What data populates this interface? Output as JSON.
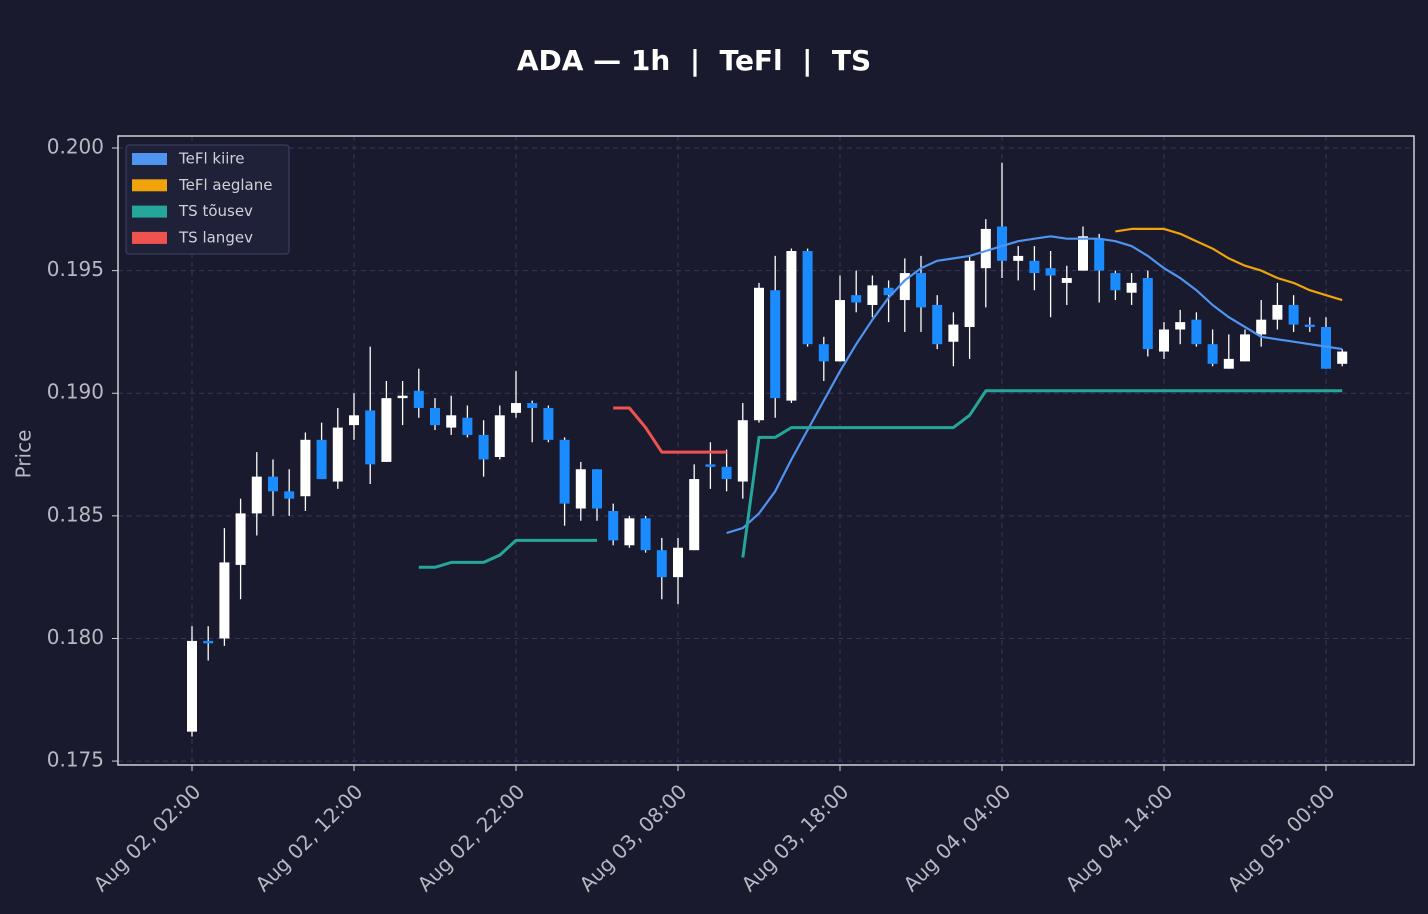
{
  "chart_data": {
    "type": "candlestick",
    "title": "ADA — 1h  |  TeFl  |  TS",
    "ylabel": "Price",
    "categories": [
      "Aug 02, 02:00",
      null,
      null,
      null,
      null,
      null,
      null,
      null,
      null,
      null,
      "Aug 02, 12:00",
      null,
      null,
      null,
      null,
      null,
      null,
      null,
      null,
      null,
      "Aug 02, 22:00",
      null,
      null,
      null,
      null,
      null,
      null,
      null,
      null,
      null,
      "Aug 03, 08:00",
      null,
      null,
      null,
      null,
      null,
      null,
      null,
      null,
      null,
      "Aug 03, 18:00",
      null,
      null,
      null,
      null,
      null,
      null,
      null,
      null,
      null,
      "Aug 04, 04:00",
      null,
      null,
      null,
      null,
      null,
      null,
      null,
      null,
      null,
      "Aug 04, 14:00",
      null,
      null,
      null,
      null,
      null,
      null,
      null,
      null,
      null,
      "Aug 05, 00:00",
      null
    ],
    "open": [
      0.1762,
      0.1799,
      0.18,
      0.183,
      0.1851,
      0.1866,
      0.186,
      0.1858,
      0.1881,
      0.1864,
      0.1887,
      0.1893,
      0.1872,
      0.1898,
      0.1901,
      0.1894,
      0.1886,
      0.189,
      0.1883,
      0.1874,
      0.1892,
      0.1896,
      0.1894,
      0.1881,
      0.1853,
      0.1869,
      0.1852,
      0.1838,
      0.1849,
      0.1836,
      0.1825,
      0.1836,
      0.1871,
      0.187,
      0.1864,
      0.1889,
      0.1942,
      0.1897,
      0.1958,
      0.192,
      0.1913,
      0.194,
      0.1936,
      0.1943,
      0.1938,
      0.1949,
      0.1936,
      0.1921,
      0.1927,
      0.1951,
      0.1968,
      0.1954,
      0.1954,
      0.1951,
      0.1945,
      0.195,
      0.1963,
      0.1949,
      0.1941,
      0.1947,
      0.1917,
      0.1926,
      0.193,
      0.192,
      0.191,
      0.1913,
      0.1924,
      0.193,
      0.1936,
      0.1928,
      0.1927,
      0.1912
    ],
    "high": [
      0.1805,
      0.1805,
      0.1845,
      0.1857,
      0.1876,
      0.1873,
      0.1869,
      0.1884,
      0.1888,
      0.1894,
      0.19,
      0.1919,
      0.1905,
      0.1905,
      0.191,
      0.1898,
      0.1899,
      0.1895,
      0.1889,
      0.1895,
      0.1909,
      0.1897,
      0.1895,
      0.1882,
      0.1872,
      0.1869,
      0.1855,
      0.185,
      0.185,
      0.1841,
      0.1841,
      0.1871,
      0.188,
      0.1877,
      0.1896,
      0.1945,
      0.1956,
      0.1959,
      0.1959,
      0.1923,
      0.1948,
      0.195,
      0.1948,
      0.1946,
      0.1955,
      0.1956,
      0.194,
      0.1933,
      0.1956,
      0.1971,
      0.1994,
      0.196,
      0.196,
      0.1958,
      0.1952,
      0.1968,
      0.1965,
      0.195,
      0.1949,
      0.195,
      0.1929,
      0.1934,
      0.1933,
      0.1926,
      0.1924,
      0.1926,
      0.1938,
      0.1945,
      0.194,
      0.1931,
      0.1931,
      0.1918
    ],
    "low": [
      0.176,
      0.1791,
      0.1797,
      0.1816,
      0.1842,
      0.185,
      0.185,
      0.1852,
      0.1865,
      0.1861,
      0.1881,
      0.1863,
      0.1872,
      0.1887,
      0.189,
      0.1885,
      0.1883,
      0.1882,
      0.1866,
      0.1873,
      0.189,
      0.188,
      0.188,
      0.1846,
      0.1848,
      0.1848,
      0.1838,
      0.1837,
      0.1835,
      0.1816,
      0.1814,
      0.1836,
      0.1861,
      0.186,
      0.1857,
      0.1888,
      0.189,
      0.1896,
      0.1919,
      0.1905,
      0.1913,
      0.1933,
      0.1931,
      0.1929,
      0.1925,
      0.1925,
      0.1918,
      0.1911,
      0.1914,
      0.1935,
      0.1947,
      0.1946,
      0.1942,
      0.1931,
      0.1936,
      0.195,
      0.1937,
      0.1938,
      0.1936,
      0.1915,
      0.1914,
      0.192,
      0.1919,
      0.1911,
      0.191,
      0.1913,
      0.1919,
      0.1926,
      0.1925,
      0.1925,
      0.191,
      0.1911
    ],
    "close": [
      0.1799,
      0.1798,
      0.1831,
      0.1851,
      0.1866,
      0.186,
      0.1857,
      0.1881,
      0.1865,
      0.1886,
      0.1891,
      0.1871,
      0.1898,
      0.1899,
      0.1894,
      0.1887,
      0.1891,
      0.1883,
      0.1873,
      0.1891,
      0.1896,
      0.1894,
      0.1881,
      0.1855,
      0.1869,
      0.1853,
      0.184,
      0.1849,
      0.1836,
      0.1825,
      0.1837,
      0.1865,
      0.187,
      0.1865,
      0.1889,
      0.1943,
      0.1898,
      0.1958,
      0.192,
      0.1913,
      0.1938,
      0.1937,
      0.1944,
      0.194,
      0.1949,
      0.1935,
      0.192,
      0.1928,
      0.1954,
      0.1967,
      0.1954,
      0.1956,
      0.1949,
      0.1948,
      0.1947,
      0.1964,
      0.195,
      0.1942,
      0.1945,
      0.1918,
      0.1926,
      0.1929,
      0.192,
      0.1912,
      0.1914,
      0.1924,
      0.193,
      0.1936,
      0.1928,
      0.1927,
      0.191,
      0.1917
    ],
    "up_color": "#ffffff",
    "down_color": "#1a8cff",
    "series": [
      {
        "name": "TeFl kiire",
        "color": "#4f94f0",
        "values": [
          null,
          null,
          null,
          null,
          null,
          null,
          null,
          null,
          null,
          null,
          null,
          null,
          null,
          null,
          null,
          null,
          null,
          null,
          null,
          null,
          null,
          null,
          null,
          null,
          null,
          null,
          null,
          null,
          null,
          null,
          null,
          null,
          null,
          0.1843,
          0.1845,
          0.1851,
          0.186,
          0.1873,
          0.1885,
          0.1897,
          0.1909,
          0.192,
          0.193,
          0.1939,
          0.1946,
          0.1951,
          0.1954,
          0.1955,
          0.1956,
          0.1958,
          0.196,
          0.1962,
          0.1963,
          0.1964,
          0.1963,
          0.1963,
          0.1963,
          0.1962,
          0.196,
          0.1956,
          0.1951,
          0.1947,
          0.1942,
          0.1936,
          0.1931,
          0.1927,
          0.1923,
          0.1922,
          0.1921,
          0.192,
          0.1919,
          0.1918
        ]
      },
      {
        "name": "TeFl aeglane",
        "color": "#f0a30a",
        "values": [
          null,
          null,
          null,
          null,
          null,
          null,
          null,
          null,
          null,
          null,
          null,
          null,
          null,
          null,
          null,
          null,
          null,
          null,
          null,
          null,
          null,
          null,
          null,
          null,
          null,
          null,
          null,
          null,
          null,
          null,
          null,
          null,
          null,
          null,
          null,
          null,
          null,
          null,
          null,
          null,
          null,
          null,
          null,
          null,
          null,
          null,
          null,
          null,
          null,
          null,
          null,
          null,
          null,
          null,
          null,
          null,
          null,
          0.1966,
          0.1967,
          0.1967,
          0.1967,
          0.1965,
          0.1962,
          0.1959,
          0.1955,
          0.1952,
          0.195,
          0.1947,
          0.1945,
          0.1942,
          0.194,
          0.1938
        ]
      },
      {
        "name": "TS tõusev",
        "color": "#26a69a",
        "values": [
          null,
          null,
          null,
          null,
          null,
          null,
          null,
          null,
          null,
          null,
          null,
          null,
          null,
          null,
          0.1829,
          0.1829,
          0.1831,
          0.1831,
          0.1831,
          0.1834,
          0.184,
          0.184,
          0.184,
          0.184,
          0.184,
          0.184,
          null,
          null,
          null,
          null,
          null,
          null,
          null,
          null,
          0.1833,
          0.1882,
          0.1882,
          0.1886,
          0.1886,
          0.1886,
          0.1886,
          0.1886,
          0.1886,
          0.1886,
          0.1886,
          0.1886,
          0.1886,
          0.1886,
          0.1891,
          0.1901,
          0.1901,
          0.1901,
          0.1901,
          0.1901,
          0.1901,
          0.1901,
          0.1901,
          0.1901,
          0.1901,
          0.1901,
          0.1901,
          0.1901,
          0.1901,
          0.1901,
          0.1901,
          0.1901,
          0.1901,
          0.1901,
          0.1901,
          0.1901,
          0.1901,
          0.1901
        ]
      },
      {
        "name": "TS langev",
        "color": "#ef5350",
        "values": [
          null,
          null,
          null,
          null,
          null,
          null,
          null,
          null,
          null,
          null,
          null,
          null,
          null,
          null,
          null,
          null,
          null,
          null,
          null,
          null,
          null,
          null,
          null,
          null,
          null,
          null,
          0.1894,
          0.1894,
          0.1886,
          0.1876,
          0.1876,
          0.1876,
          0.1876,
          0.1876,
          null,
          null,
          null,
          null,
          null,
          null,
          null,
          null,
          null,
          null,
          null,
          null,
          null,
          null,
          null,
          null,
          null,
          null,
          null,
          null,
          null,
          null,
          null,
          null,
          null,
          null,
          null,
          null,
          null,
          null,
          null,
          null,
          null,
          null,
          null,
          null,
          null,
          null
        ]
      }
    ],
    "ylim": [
      0.17484,
      0.20049
    ],
    "yticks": [
      0.175,
      {
        "value": 0.18,
        "label": "0.180"
      },
      0.185,
      {
        "value": 0.19,
        "label": "0.190"
      },
      0.195,
      {
        "value": 0.2,
        "label": "0.200"
      }
    ],
    "grid": true,
    "legend": "upper left"
  }
}
